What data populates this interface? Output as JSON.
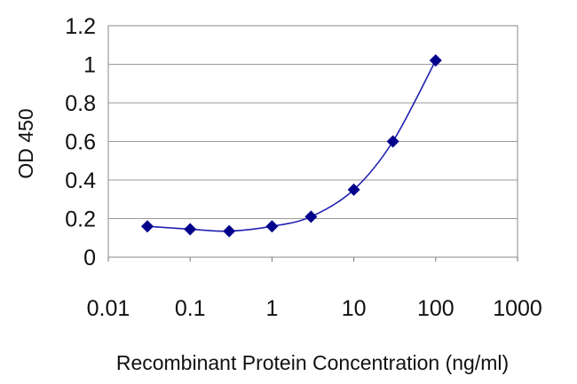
{
  "chart_data": {
    "type": "scatter",
    "xscale": "log",
    "xlabel": "Recombinant Protein Concentration (ng/ml)",
    "ylabel": "OD 450",
    "xlim": [
      0.01,
      1000
    ],
    "ylim": [
      0,
      1.2
    ],
    "xticks": [
      "0.01",
      "0.1",
      "1",
      "10",
      "100",
      "1000"
    ],
    "yticks": [
      "0",
      "0.2",
      "0.4",
      "0.6",
      "0.8",
      "1",
      "1.2"
    ],
    "grid": true,
    "legend": "none",
    "series": [
      {
        "x": [
          0.03,
          0.1,
          0.3,
          1,
          3,
          10,
          30,
          100
        ],
        "y": [
          0.16,
          0.145,
          0.135,
          0.16,
          0.21,
          0.35,
          0.6,
          1.02
        ],
        "color": "#00008b",
        "marker": "diamond",
        "line": "smooth"
      }
    ]
  }
}
